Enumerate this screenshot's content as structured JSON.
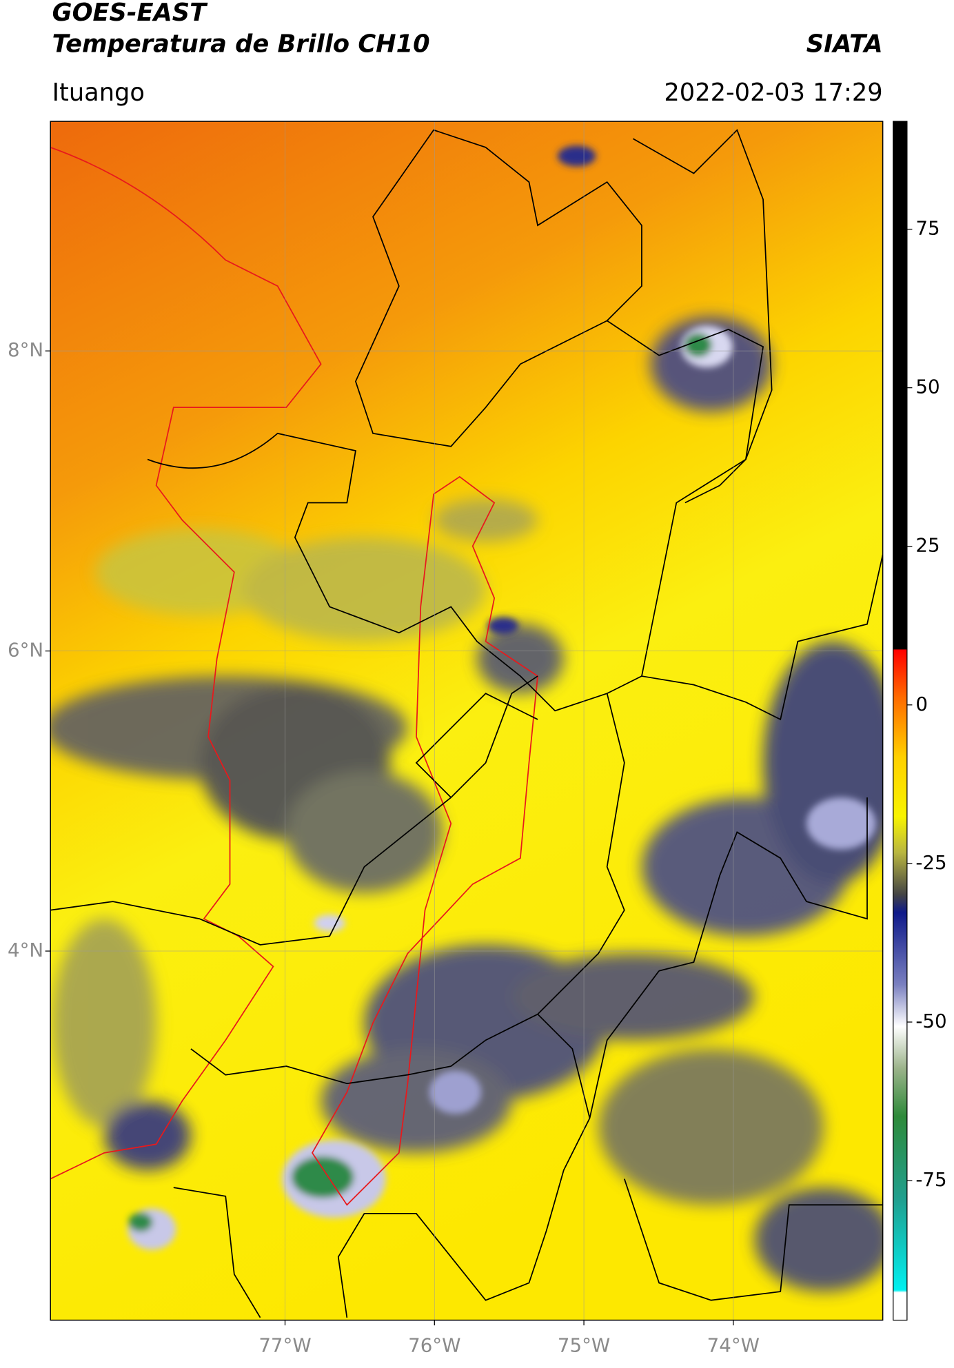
{
  "header": {
    "title": "GOES-EAST",
    "subtitle": "Temperatura de Brillo CH10",
    "source": "SIATA",
    "location": "Ituango",
    "timestamp": "2022-02-03 17:29"
  },
  "map": {
    "xlim": [
      -78.57,
      -73.0
    ],
    "ylim": [
      1.54,
      9.53
    ],
    "xticks": [
      {
        "value": -77,
        "label": "77°W"
      },
      {
        "value": -76,
        "label": "76°W"
      },
      {
        "value": -75,
        "label": "75°W"
      },
      {
        "value": -74,
        "label": "74°W"
      }
    ],
    "yticks": [
      {
        "value": 8,
        "label": "8°N"
      },
      {
        "value": 6,
        "label": "6°N"
      },
      {
        "value": 4,
        "label": "4°N"
      }
    ],
    "grid": true
  },
  "colorbar": {
    "lim": [
      -97,
      92
    ],
    "ticks": [
      75,
      50,
      25,
      0,
      -25,
      -50,
      -75
    ]
  }
}
